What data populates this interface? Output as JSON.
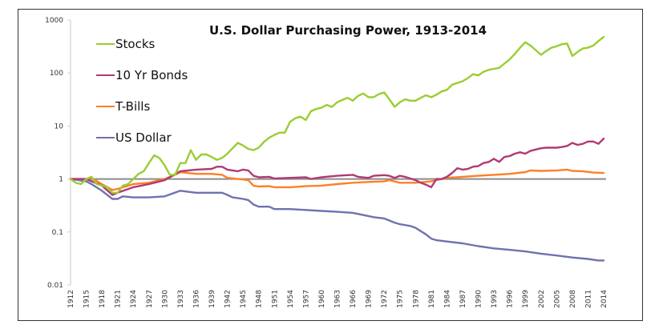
{
  "chart_data": {
    "type": "line",
    "title": "U.S. Dollar Purchasing Power, 1913-2014",
    "xlabel": "",
    "ylabel": "",
    "yscale": "log",
    "ylim": [
      0.01,
      1000
    ],
    "xlim": [
      1912,
      2014
    ],
    "y_ticks": [
      "1000",
      "100",
      "10",
      "1",
      "0.1",
      "0.01"
    ],
    "y_tick_values": [
      1000,
      100,
      10,
      1,
      0.1,
      0.01
    ],
    "x_ticks": [
      "1912",
      "1915",
      "1918",
      "1921",
      "1924",
      "1927",
      "1930",
      "1933",
      "1936",
      "1939",
      "1942",
      "1945",
      "1948",
      "1951",
      "1954",
      "1957",
      "1960",
      "1963",
      "1966",
      "1969",
      "1972",
      "1975",
      "1978",
      "1981",
      "1984",
      "1987",
      "1990",
      "1993",
      "1996",
      "1999",
      "2002",
      "2005",
      "2008",
      "2011",
      "2014"
    ],
    "reference_line": 1,
    "grid": false,
    "legend_position": "top-left",
    "series": [
      {
        "name": "Stocks",
        "color": "#9acd32",
        "x": [
          1912,
          1913,
          1914,
          1915,
          1916,
          1917,
          1918,
          1919,
          1920,
          1921,
          1922,
          1923,
          1924,
          1925,
          1926,
          1927,
          1928,
          1929,
          1930,
          1931,
          1932,
          1933,
          1934,
          1935,
          1936,
          1937,
          1938,
          1939,
          1940,
          1941,
          1942,
          1943,
          1944,
          1945,
          1946,
          1947,
          1948,
          1949,
          1950,
          1951,
          1952,
          1953,
          1954,
          1955,
          1956,
          1957,
          1958,
          1959,
          1960,
          1961,
          1962,
          1963,
          1964,
          1965,
          1966,
          1967,
          1968,
          1969,
          1970,
          1971,
          1972,
          1973,
          1974,
          1975,
          1976,
          1977,
          1978,
          1979,
          1980,
          1981,
          1982,
          1983,
          1984,
          1985,
          1986,
          1987,
          1988,
          1989,
          1990,
          1991,
          1992,
          1993,
          1994,
          1995,
          1996,
          1997,
          1998,
          1999,
          2000,
          2001,
          2002,
          2003,
          2004,
          2005,
          2006,
          2007,
          2008,
          2009,
          2010,
          2011,
          2012,
          2013,
          2014
        ],
        "values": [
          1,
          0.85,
          0.8,
          1.0,
          1.1,
          0.8,
          0.75,
          0.7,
          0.55,
          0.55,
          0.75,
          0.8,
          1.0,
          1.25,
          1.4,
          2.0,
          2.8,
          2.5,
          1.8,
          1.2,
          1.2,
          2.0,
          2.0,
          3.5,
          2.3,
          2.9,
          2.9,
          2.6,
          2.3,
          2.5,
          3.0,
          3.8,
          4.8,
          4.3,
          3.7,
          3.5,
          3.9,
          5.0,
          6.0,
          6.8,
          7.5,
          7.5,
          12,
          14,
          15,
          13,
          19,
          21,
          22,
          25,
          23,
          28,
          31,
          34,
          30,
          37,
          41,
          35,
          35,
          40,
          43,
          32,
          23,
          28,
          32,
          30,
          30,
          34,
          38,
          35,
          39,
          45,
          48,
          60,
          65,
          70,
          80,
          95,
          90,
          105,
          115,
          120,
          125,
          150,
          180,
          230,
          300,
          380,
          330,
          270,
          220,
          260,
          300,
          320,
          350,
          360,
          210,
          250,
          290,
          300,
          330,
          400,
          480
        ]
      },
      {
        "name": "10 Yr Bonds",
        "color": "#b03a73",
        "x": [
          1912,
          1915,
          1918,
          1920,
          1921,
          1924,
          1927,
          1930,
          1933,
          1936,
          1939,
          1940,
          1941,
          1942,
          1944,
          1945,
          1946,
          1947,
          1948,
          1950,
          1951,
          1954,
          1957,
          1958,
          1960,
          1963,
          1966,
          1967,
          1969,
          1970,
          1972,
          1973,
          1974,
          1975,
          1976,
          1978,
          1979,
          1980,
          1981,
          1982,
          1983,
          1984,
          1985,
          1986,
          1987,
          1988,
          1989,
          1990,
          1991,
          1992,
          1993,
          1994,
          1995,
          1996,
          1997,
          1998,
          1999,
          2000,
          2001,
          2002,
          2003,
          2004,
          2005,
          2006,
          2007,
          2008,
          2009,
          2010,
          2011,
          2012,
          2013,
          2014
        ],
        "values": [
          1,
          1.0,
          0.75,
          0.5,
          0.55,
          0.7,
          0.8,
          0.95,
          1.4,
          1.5,
          1.55,
          1.7,
          1.7,
          1.5,
          1.4,
          1.5,
          1.45,
          1.15,
          1.08,
          1.1,
          1.02,
          1.05,
          1.08,
          1.0,
          1.08,
          1.15,
          1.2,
          1.1,
          1.05,
          1.15,
          1.18,
          1.15,
          1.05,
          1.15,
          1.1,
          0.95,
          0.85,
          0.78,
          0.7,
          1.0,
          1.0,
          1.1,
          1.3,
          1.6,
          1.5,
          1.55,
          1.7,
          1.75,
          2.0,
          2.1,
          2.4,
          2.1,
          2.6,
          2.7,
          3.0,
          3.2,
          3.0,
          3.4,
          3.6,
          3.8,
          3.9,
          3.9,
          3.9,
          4.0,
          4.2,
          4.8,
          4.4,
          4.6,
          5.1,
          5.1,
          4.6,
          5.8
        ]
      },
      {
        "name": "T-Bills",
        "color": "#ff7f27",
        "x": [
          1912,
          1915,
          1916,
          1918,
          1920,
          1921,
          1924,
          1927,
          1930,
          1932,
          1933,
          1936,
          1939,
          1941,
          1942,
          1945,
          1946,
          1947,
          1948,
          1950,
          1951,
          1954,
          1957,
          1960,
          1963,
          1966,
          1969,
          1972,
          1973,
          1975,
          1978,
          1981,
          1984,
          1987,
          1990,
          1993,
          1996,
          1999,
          2000,
          2002,
          2005,
          2007,
          2008,
          2010,
          2012,
          2014
        ],
        "values": [
          1,
          1.0,
          1.05,
          0.8,
          0.62,
          0.65,
          0.8,
          0.85,
          1.0,
          1.2,
          1.35,
          1.25,
          1.25,
          1.2,
          1.05,
          0.98,
          0.95,
          0.75,
          0.72,
          0.73,
          0.7,
          0.7,
          0.73,
          0.75,
          0.8,
          0.85,
          0.88,
          0.9,
          0.95,
          0.85,
          0.85,
          0.9,
          1.05,
          1.1,
          1.15,
          1.2,
          1.25,
          1.35,
          1.45,
          1.42,
          1.45,
          1.5,
          1.42,
          1.4,
          1.32,
          1.3
        ]
      },
      {
        "name": "US Dollar",
        "color": "#7071b0",
        "x": [
          1912,
          1915,
          1916,
          1918,
          1920,
          1921,
          1922,
          1924,
          1927,
          1930,
          1933,
          1936,
          1939,
          1941,
          1942,
          1943,
          1945,
          1946,
          1947,
          1948,
          1950,
          1951,
          1954,
          1957,
          1960,
          1963,
          1966,
          1969,
          1970,
          1972,
          1974,
          1975,
          1977,
          1978,
          1980,
          1981,
          1982,
          1984,
          1987,
          1990,
          1993,
          1996,
          1999,
          2002,
          2005,
          2008,
          2011,
          2013,
          2014
        ],
        "values": [
          1,
          0.9,
          0.8,
          0.6,
          0.42,
          0.42,
          0.47,
          0.45,
          0.45,
          0.47,
          0.6,
          0.55,
          0.55,
          0.55,
          0.5,
          0.45,
          0.42,
          0.4,
          0.33,
          0.3,
          0.3,
          0.27,
          0.27,
          0.26,
          0.25,
          0.24,
          0.23,
          0.2,
          0.19,
          0.18,
          0.15,
          0.14,
          0.13,
          0.12,
          0.09,
          0.075,
          0.07,
          0.066,
          0.061,
          0.054,
          0.049,
          0.046,
          0.043,
          0.039,
          0.036,
          0.033,
          0.031,
          0.029,
          0.029
        ]
      }
    ]
  }
}
